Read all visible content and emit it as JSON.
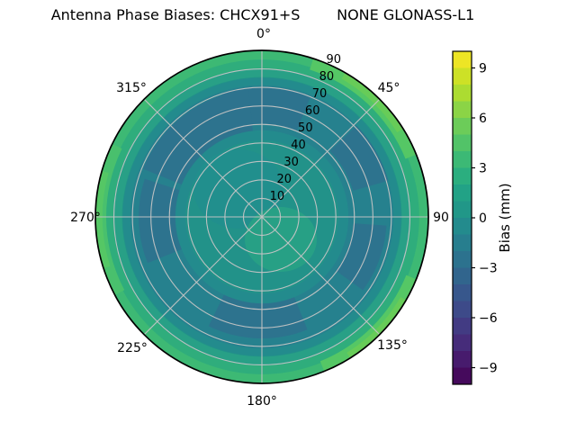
{
  "window": {
    "background": "#ffffff"
  },
  "chart": {
    "title": "Antenna Phase Biases: CHCX91+S        NONE GLONASS-L1",
    "theta_tick_labels": [
      "0°",
      "45°",
      "90",
      "135°",
      "180°",
      "225°",
      "270°",
      "315°"
    ],
    "r_ticks": [
      10,
      20,
      30,
      40,
      50,
      60,
      70,
      80,
      90
    ],
    "colorbar": {
      "label": "Bias (mm)",
      "tick_labels": [
        "9",
        "6",
        "3",
        "0",
        "−3",
        "−6",
        "−9"
      ],
      "tick_values": [
        9,
        6,
        3,
        0,
        -3,
        -6,
        -9
      ],
      "vmin": -10,
      "vmax": 10,
      "band_colors_top_to_bottom": [
        "#ede525",
        "#cde126",
        "#acdc31",
        "#8bd446",
        "#6ccc59",
        "#52c368",
        "#3cb975",
        "#2bae7f",
        "#22a286",
        "#219788",
        "#238b8d",
        "#277e8e",
        "#2c728e",
        "#31658d",
        "#37578c",
        "#3d4a89",
        "#423b83",
        "#462c7a",
        "#471b6d",
        "#450a5c"
      ]
    },
    "palette": {
      "rim_band": "#3db974",
      "rim_band2": "#2fad7c",
      "rim_band3": "#28a086",
      "base": "#229289",
      "bright_arc": "#55c765",
      "bright_arc_core": "#67cc58",
      "bright_arc2": "#49c06d",
      "soft_dark": "#238b8d",
      "dark": "#26818e",
      "darker": "#2d738e",
      "center_light": "#27a085",
      "center_dark": "#218f8d",
      "grid": "#c4c4c4",
      "outline": "#000000"
    }
  },
  "chart_data": {
    "type": "heatmap",
    "projection": "polar",
    "title": "Antenna Phase Biases: CHCX91+S        NONE GLONASS-L1",
    "theta_ticks_deg": [
      0,
      45,
      90,
      135,
      180,
      225,
      270,
      315
    ],
    "theta_tick_labels": [
      "0°",
      "45°",
      "90",
      "135°",
      "180°",
      "225°",
      "270°",
      "315°"
    ],
    "r_ticks": [
      10,
      20,
      30,
      40,
      50,
      60,
      70,
      80,
      90
    ],
    "r_max": 90,
    "r_label_angle_deg": 22.5,
    "grid": true,
    "legend_position": "right-colorbar",
    "colorbar": {
      "label": "Bias (mm)",
      "ticks": [
        9,
        6,
        3,
        0,
        -3,
        -6,
        -9
      ],
      "range": [
        -10,
        10
      ],
      "colormap": "viridis",
      "n_bands": 20,
      "band_step": 1
    },
    "azimuth_deg": [
      0,
      45,
      90,
      135,
      180,
      225,
      270,
      315
    ],
    "zenith_deg": [
      0,
      10,
      20,
      30,
      40,
      50,
      60,
      70,
      80,
      90
    ],
    "bias_mm_estimated": [
      [
        0.5,
        0.5,
        0.3,
        0.0,
        -0.5,
        -1.5,
        -2.0,
        -1.5,
        1.0,
        3.5
      ],
      [
        0.5,
        0.8,
        0.8,
        0.5,
        0.0,
        -0.5,
        -1.5,
        -1.0,
        2.0,
        5.0
      ],
      [
        0.5,
        0.8,
        0.5,
        0.3,
        0.0,
        -0.5,
        -1.0,
        -0.5,
        1.5,
        4.0
      ],
      [
        0.5,
        0.5,
        0.3,
        0.0,
        -0.5,
        -1.0,
        -1.5,
        -0.5,
        1.5,
        4.5
      ],
      [
        0.5,
        0.3,
        0.0,
        -0.3,
        -0.5,
        -1.5,
        -2.0,
        -1.0,
        1.0,
        3.5
      ],
      [
        0.5,
        0.3,
        0.0,
        -0.5,
        -1.0,
        -1.5,
        -1.5,
        -0.5,
        1.5,
        4.0
      ],
      [
        0.5,
        0.3,
        0.0,
        -0.5,
        -1.0,
        -2.0,
        -2.0,
        -0.5,
        2.0,
        4.5
      ],
      [
        0.5,
        0.3,
        -0.3,
        -0.5,
        -1.5,
        -2.0,
        -2.5,
        -1.0,
        1.5,
        4.0
      ]
    ],
    "notes": "Filled polar contour (viridis). Radial axis = zenith angle 0–90 deg (0 at center). Bias mostly near 0 mm (teal) with a darker −1 to −2.5 mm annulus around zenith 50–70 and a bright +3 to +5 mm green rim near the horizon, brightest near azimuths 45°, 135° and 270°."
  }
}
